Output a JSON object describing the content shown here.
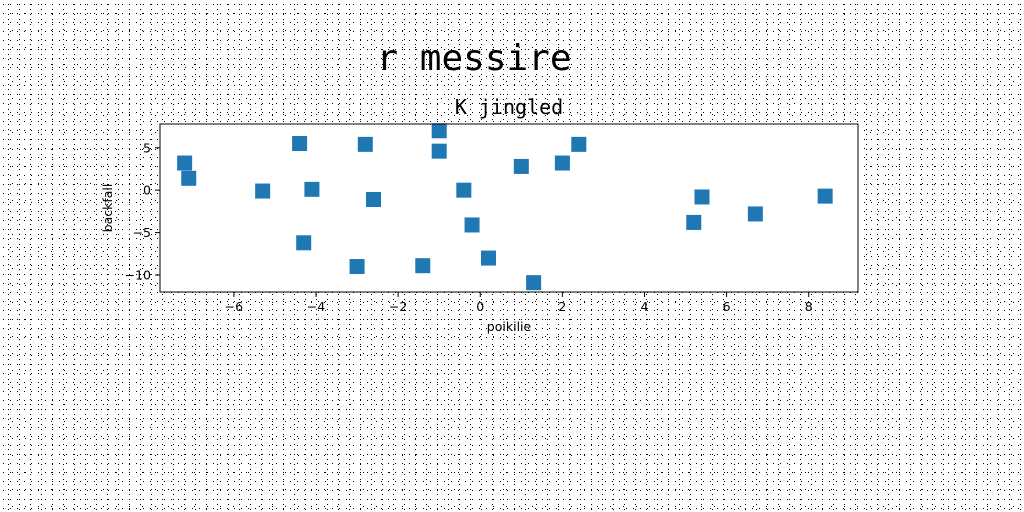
{
  "chart_data": {
    "type": "scatter",
    "suptitle": "r messire",
    "title": "K jingled",
    "xlabel": "poikilie",
    "ylabel": "backfall",
    "xlim": [
      -7.8,
      9.2
    ],
    "ylim": [
      -12,
      7.8
    ],
    "xticks": [
      -6,
      -4,
      -2,
      0,
      2,
      4,
      6,
      8
    ],
    "xtick_labels": [
      "−6",
      "−4",
      "−2",
      "0",
      "2",
      "4",
      "6",
      "8"
    ],
    "yticks": [
      5,
      0,
      -5,
      -10
    ],
    "ytick_labels": [
      "5",
      "0",
      "−5",
      "−10"
    ],
    "marker": "square",
    "color": "#1f77b4",
    "grid": false,
    "points": [
      {
        "x": -7.2,
        "y": 3.2
      },
      {
        "x": -7.1,
        "y": 1.4
      },
      {
        "x": -5.3,
        "y": -0.1
      },
      {
        "x": -4.4,
        "y": 5.5
      },
      {
        "x": -4.3,
        "y": -6.2
      },
      {
        "x": -4.1,
        "y": 0.1
      },
      {
        "x": -3.0,
        "y": -9.0
      },
      {
        "x": -2.8,
        "y": 5.4
      },
      {
        "x": -2.6,
        "y": -1.1
      },
      {
        "x": -1.4,
        "y": -8.9
      },
      {
        "x": -1.0,
        "y": 4.6
      },
      {
        "x": -1.0,
        "y": 7.0
      },
      {
        "x": -0.4,
        "y": 0.0
      },
      {
        "x": -0.2,
        "y": -4.1
      },
      {
        "x": 0.2,
        "y": -8.0
      },
      {
        "x": 1.0,
        "y": 2.8
      },
      {
        "x": 1.3,
        "y": -10.9
      },
      {
        "x": 2.0,
        "y": 3.2
      },
      {
        "x": 2.4,
        "y": 5.4
      },
      {
        "x": 5.2,
        "y": -3.8
      },
      {
        "x": 5.4,
        "y": -0.8
      },
      {
        "x": 6.7,
        "y": -2.8
      },
      {
        "x": 8.4,
        "y": -0.7
      }
    ]
  }
}
